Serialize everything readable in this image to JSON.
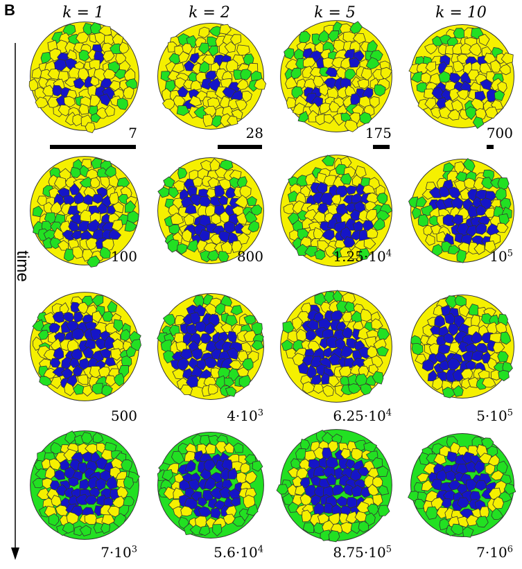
{
  "figure": {
    "panel_letter": "B",
    "axis_label": "time",
    "columns": [
      {
        "k_label": "k = 1"
      },
      {
        "k_label": "k = 2"
      },
      {
        "k_label": "k = 5"
      },
      {
        "k_label": "k = 10"
      }
    ],
    "rows": [
      {
        "labels": [
          "7",
          "28",
          "175",
          "700"
        ]
      },
      {
        "labels": [
          "100",
          "800",
          "1.25·10^4",
          "10^5"
        ]
      },
      {
        "labels": [
          "500",
          "4·10^3",
          "6.25·10^4",
          "5·10^5"
        ]
      },
      {
        "labels": [
          "7·10^3",
          "5.6·10^4",
          "8.75·10^5",
          "7·10^6"
        ]
      }
    ],
    "colors": {
      "blue": "#1515c8",
      "yellow": "#f5f000",
      "green": "#22e022",
      "outline": "#333333"
    }
  }
}
